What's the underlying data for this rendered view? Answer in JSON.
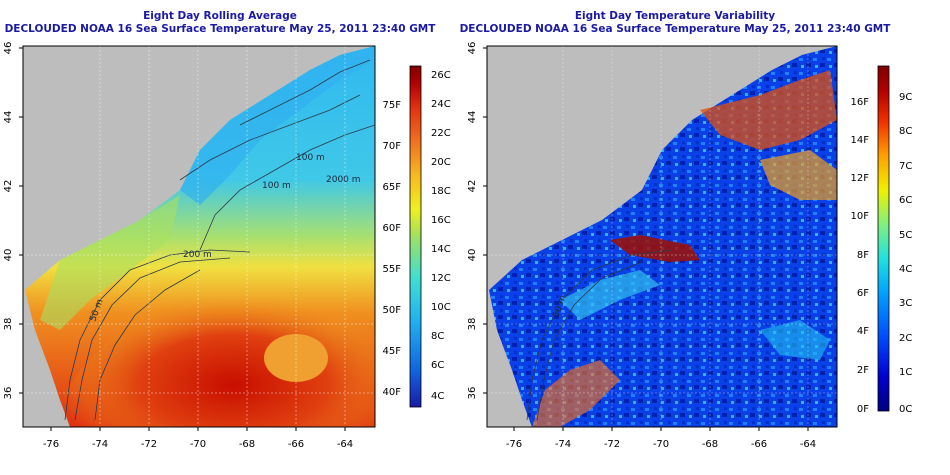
{
  "left_panel": {
    "title_line1": "Eight Day Rolling Average",
    "title_line2": "DECLOUDED NOAA 16 Sea Surface Temperature May 25, 2011 23:40 GMT",
    "x_ticks": [
      "-76",
      "-74",
      "-72",
      "-70",
      "-68",
      "-66",
      "-64"
    ],
    "y_ticks": [
      "36",
      "38",
      "40",
      "42",
      "44",
      "46"
    ],
    "colorbar_celsius": [
      "26C",
      "24C",
      "22C",
      "20C",
      "18C",
      "16C",
      "14C",
      "12C",
      "10C",
      "8C",
      "6C",
      "4C"
    ],
    "colorbar_fahrenheit": [
      "75F",
      "70F",
      "65F",
      "60F",
      "55F",
      "50F",
      "45F",
      "40F"
    ],
    "contour_labels": [
      "100 m",
      "100 m",
      "2000 m",
      "200 m",
      "50 m"
    ]
  },
  "right_panel": {
    "title_line1": "Eight Day Temperature Variability",
    "title_line2": "DECLOUDED NOAA 16 Sea Surface Temperature May 25, 2011 23:40 GMT",
    "x_ticks": [
      "-76",
      "-74",
      "-72",
      "-70",
      "-68",
      "-66",
      "-64"
    ],
    "y_ticks": [
      "36",
      "38",
      "40",
      "42",
      "44",
      "46"
    ],
    "colorbar_fahrenheit": [
      "16F",
      "14F",
      "12F",
      "10F",
      "8F",
      "6F",
      "4F",
      "2F",
      "0F"
    ],
    "colorbar_celsius": [
      "9C",
      "8C",
      "7C",
      "6C",
      "5C",
      "4C",
      "3C",
      "2C",
      "1C",
      "0C"
    ],
    "contour_labels": [
      "50 m"
    ]
  },
  "colors": {
    "land": "#bdbdbd",
    "title": "#1a1aa6",
    "left_scale": [
      "#1a1aa6",
      "#1060e0",
      "#20b0f0",
      "#40e0d0",
      "#a0e060",
      "#f0f020",
      "#f8b820",
      "#f07020",
      "#e03010",
      "#b00000",
      "#800000"
    ],
    "right_scale": [
      "#000080",
      "#0000d0",
      "#0050ff",
      "#00a0ff",
      "#20e0e0",
      "#80f080",
      "#f0f000",
      "#ffa000",
      "#f03000",
      "#b00000",
      "#800000"
    ]
  }
}
